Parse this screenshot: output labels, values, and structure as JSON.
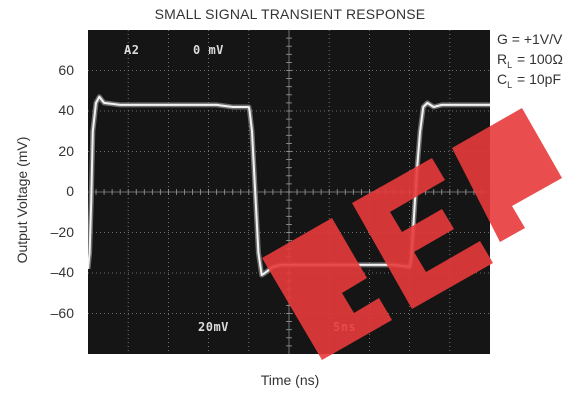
{
  "chart_data": {
    "type": "line",
    "title": "SMALL SIGNAL TRANSIENT RESPONSE",
    "xlabel": "Time (ns)",
    "ylabel": "Output Voltage (mV)",
    "yticks": [
      "60",
      "40",
      "20",
      "0",
      "–20",
      "–40",
      "–60"
    ],
    "ytick_values": [
      60,
      40,
      20,
      0,
      -20,
      -40,
      -60
    ],
    "ylim": [
      -80,
      80
    ],
    "xlim": [
      0,
      50
    ],
    "grid": true,
    "conditions": [
      {
        "symbol": "G",
        "sub": "",
        "text": " = +1V/V"
      },
      {
        "symbol": "R",
        "sub": "L",
        "text": " = 100Ω"
      },
      {
        "symbol": "C",
        "sub": "L",
        "text": " = 10pF"
      }
    ],
    "scope_labels": {
      "channel": "A2",
      "offset": "0 mV",
      "volts_per_div": "20mV",
      "time_per_div": "5ns"
    },
    "series": [
      {
        "x": [
          0.0,
          0.2,
          0.4,
          0.6,
          1.0,
          1.4,
          2.0,
          4.0,
          6.0,
          8.0,
          10.0,
          12.0,
          14.0,
          16.0,
          18.0,
          20.0,
          20.1,
          20.4,
          20.6,
          20.8,
          21.0,
          21.2,
          21.6,
          22.0,
          23.0,
          24.0,
          26.0,
          30.0,
          34.0,
          38.0,
          40.0,
          40.2,
          40.5,
          40.9,
          41.3,
          41.7,
          42.2,
          43.0,
          44.0,
          46.0,
          48.0,
          50.0
        ],
        "y": [
          -38,
          -30,
          -5,
          30,
          44,
          47,
          44,
          43,
          43,
          43,
          43,
          43,
          43,
          43,
          42,
          42,
          40,
          30,
          15,
          0,
          -15,
          -30,
          -41,
          -40,
          -37,
          -36,
          -36,
          -36,
          -36,
          -36,
          -37,
          -33,
          -15,
          10,
          30,
          42,
          44,
          42,
          43,
          43,
          43,
          43
        ]
      }
    ]
  }
}
